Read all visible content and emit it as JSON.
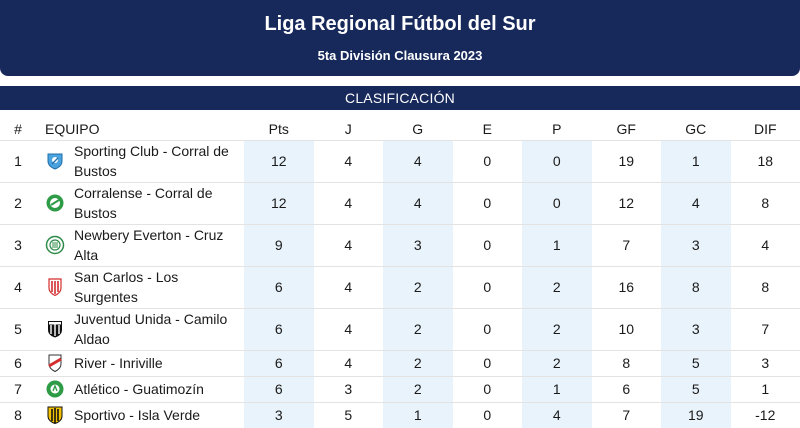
{
  "header": {
    "title": "Liga Regional Fútbol del Sur",
    "subtitle": "5ta División Clausura 2023"
  },
  "section_title": "CLASIFICACIÓN",
  "columns": [
    "#",
    "EQUIPO",
    "Pts",
    "J",
    "G",
    "E",
    "P",
    "GF",
    "GC",
    "DIF"
  ],
  "rows": [
    {
      "pos": "1",
      "team": "Sporting Club - Corral de Bustos",
      "crest": "sporting-club-crest-icon",
      "pts": "12",
      "j": "4",
      "g": "4",
      "e": "0",
      "p": "0",
      "gf": "19",
      "gc": "1",
      "dif": "18"
    },
    {
      "pos": "2",
      "team": "Corralense - Corral de Bustos",
      "crest": "corralense-crest-icon",
      "pts": "12",
      "j": "4",
      "g": "4",
      "e": "0",
      "p": "0",
      "gf": "12",
      "gc": "4",
      "dif": "8"
    },
    {
      "pos": "3",
      "team": "Newbery Everton - Cruz Alta",
      "crest": "newbery-everton-crest-icon",
      "pts": "9",
      "j": "4",
      "g": "3",
      "e": "0",
      "p": "1",
      "gf": "7",
      "gc": "3",
      "dif": "4"
    },
    {
      "pos": "4",
      "team": "San Carlos - Los Surgentes",
      "crest": "san-carlos-crest-icon",
      "pts": "6",
      "j": "4",
      "g": "2",
      "e": "0",
      "p": "2",
      "gf": "16",
      "gc": "8",
      "dif": "8"
    },
    {
      "pos": "5",
      "team": "Juventud Unida - Camilo Aldao",
      "crest": "juventud-unida-crest-icon",
      "pts": "6",
      "j": "4",
      "g": "2",
      "e": "0",
      "p": "2",
      "gf": "10",
      "gc": "3",
      "dif": "7"
    },
    {
      "pos": "6",
      "team": "River - Inriville",
      "crest": "river-crest-icon",
      "pts": "6",
      "j": "4",
      "g": "2",
      "e": "0",
      "p": "2",
      "gf": "8",
      "gc": "5",
      "dif": "3"
    },
    {
      "pos": "7",
      "team": "Atlético - Guatimozín",
      "crest": "atletico-crest-icon",
      "pts": "6",
      "j": "3",
      "g": "2",
      "e": "0",
      "p": "1",
      "gf": "6",
      "gc": "5",
      "dif": "1"
    },
    {
      "pos": "8",
      "team": "Sportivo - Isla Verde",
      "crest": "sportivo-crest-icon",
      "pts": "3",
      "j": "5",
      "g": "1",
      "e": "0",
      "p": "4",
      "gf": "7",
      "gc": "19",
      "dif": "-12"
    }
  ],
  "colors": {
    "header_bg": "#17285a",
    "shade": "#e9f3fb"
  }
}
